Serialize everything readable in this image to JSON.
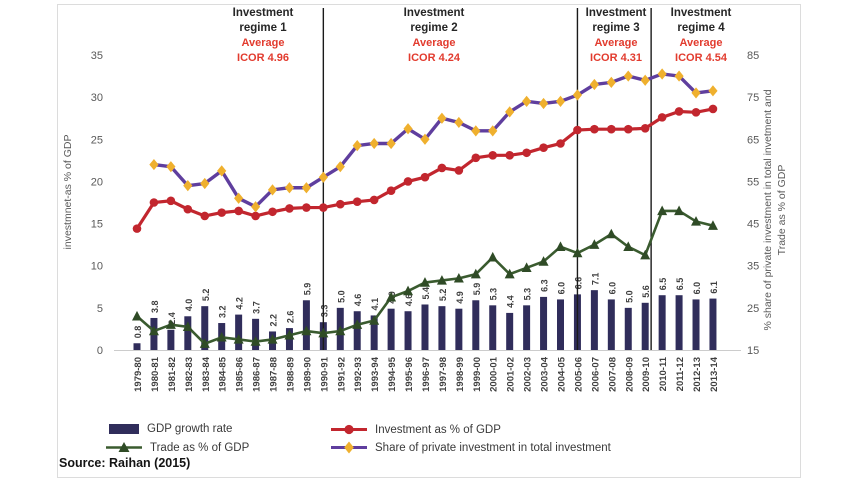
{
  "figure": {
    "source": "Source: Raihan (2015)"
  },
  "regimes": [
    {
      "line1": "Investment",
      "line2": "regime 1",
      "avg": "Average",
      "icor": "ICOR 4.96"
    },
    {
      "line1": "Investment",
      "line2": "regime 2",
      "avg": "Average",
      "icor": "ICOR 4.24"
    },
    {
      "line1": "Investment",
      "line2": "regime 3",
      "avg": "Average",
      "icor": "ICOR 4.31"
    },
    {
      "line1": "Investment",
      "line2": "regime 4",
      "avg": "Average",
      "icor": "ICOR 4.54"
    }
  ],
  "chart_data": {
    "type": "bar+line",
    "categories": [
      "1979-80",
      "1980-81",
      "1981-82",
      "1982-83",
      "1983-84",
      "1984-85",
      "1985-86",
      "1986-87",
      "1987-88",
      "1988-89",
      "1989-90",
      "1990-91",
      "1991-92",
      "1992-93",
      "1993-94",
      "1994-95",
      "1995-96",
      "1996-97",
      "1997-98",
      "1998-99",
      "1999-00",
      "2000-01",
      "2001-02",
      "2002-03",
      "2003-04",
      "2004-05",
      "2005-06",
      "2006-07",
      "2007-08",
      "2008-09",
      "2009-10",
      "2010-11",
      "2011-12",
      "2012-13",
      "2013-14"
    ],
    "series": [
      {
        "id": "gdp-growth",
        "name": "GDP growth rate",
        "type": "bar",
        "axis": "left",
        "color": "#302d5b",
        "values": [
          0.8,
          3.8,
          2.4,
          4.0,
          5.2,
          3.2,
          4.2,
          3.7,
          2.2,
          2.6,
          5.9,
          3.3,
          5.0,
          4.6,
          4.1,
          4.9,
          4.6,
          5.4,
          5.2,
          4.9,
          5.9,
          5.3,
          4.4,
          5.3,
          6.3,
          6.0,
          6.6,
          7.1,
          6.0,
          5.0,
          5.6,
          6.5,
          6.5,
          6.0,
          6.1
        ]
      },
      {
        "id": "investment-gdp",
        "name": "Investment as % of GDP",
        "type": "line",
        "axis": "left",
        "marker": "circle",
        "color": "#c2262e",
        "marker_color": "#c2262e",
        "width": 3.2,
        "values": [
          14.4,
          17.5,
          17.7,
          16.7,
          15.9,
          16.3,
          16.5,
          15.9,
          16.4,
          16.8,
          16.9,
          16.9,
          17.3,
          17.6,
          17.8,
          18.9,
          20.0,
          20.5,
          21.6,
          21.3,
          22.8,
          23.1,
          23.1,
          23.4,
          24.0,
          24.5,
          26.1,
          26.2,
          26.2,
          26.2,
          26.3,
          27.6,
          28.3,
          28.2,
          28.6
        ]
      },
      {
        "id": "trade-gdp",
        "name": "Trade as % of GDP",
        "type": "line",
        "axis": "right",
        "marker": "triangle",
        "color": "#3a5b2f",
        "marker_color": "#2f4b26",
        "width": 2.6,
        "values": [
          23.0,
          19.5,
          21.0,
          20.5,
          16.5,
          18.0,
          17.5,
          17.0,
          17.5,
          18.5,
          19.5,
          19.0,
          19.5,
          21.0,
          22.0,
          27.5,
          29.0,
          31.0,
          31.5,
          32.0,
          33.0,
          37.0,
          33.0,
          34.5,
          36.0,
          39.5,
          38.0,
          40.0,
          42.5,
          39.5,
          37.5,
          48.0,
          48.0,
          45.5,
          44.5
        ]
      },
      {
        "id": "private-share",
        "name": "Share of private investment in total investment",
        "type": "line",
        "axis": "right",
        "marker": "diamond",
        "color": "#5f3e9e",
        "marker_color": "#efb02e",
        "width": 3.4,
        "values": [
          null,
          59,
          58.5,
          54,
          54.5,
          57.5,
          51,
          49,
          53,
          53.5,
          53.5,
          56,
          58.5,
          63.5,
          64,
          64,
          67.5,
          65,
          70,
          69,
          67,
          67,
          71.5,
          74,
          73.5,
          74,
          75.5,
          78,
          78.5,
          80,
          79,
          80.5,
          80,
          76,
          76.5
        ]
      }
    ],
    "left_axis": {
      "title": "investmnet-as % of GDP",
      "min": 0,
      "max": 35,
      "step": 5
    },
    "right_axis": {
      "title_line1": "% share of private investment in total invetment and",
      "title_line2": "Trade as % of GDP",
      "min": 15,
      "max": 85,
      "step": 10
    },
    "dividers": [
      {
        "index": 11
      },
      {
        "index": 26
      },
      {
        "index": 30.35
      }
    ],
    "legend_position": "bottom",
    "grid": false
  }
}
